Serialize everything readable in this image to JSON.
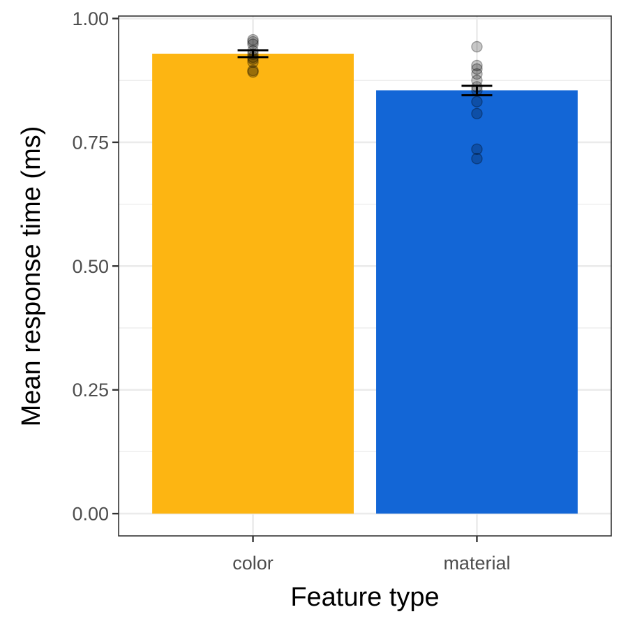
{
  "chart_data": {
    "type": "bar",
    "xlabel": "Feature type",
    "ylabel": "Mean response time (ms)",
    "categories": [
      "color",
      "material"
    ],
    "values": [
      0.929,
      0.855
    ],
    "error": [
      {
        "low": 0.922,
        "high": 0.936
      },
      {
        "low": 0.845,
        "high": 0.864
      }
    ],
    "points": [
      [
        0.957,
        0.953,
        0.948,
        0.935,
        0.928,
        0.922,
        0.918,
        0.912,
        0.895,
        0.892
      ],
      [
        0.943,
        0.905,
        0.898,
        0.888,
        0.875,
        0.862,
        0.855,
        0.832,
        0.808,
        0.736,
        0.717
      ]
    ],
    "colors": [
      "#FDB512",
      "#1366D6"
    ],
    "yticks": [
      "0.00",
      "0.25",
      "0.50",
      "0.75",
      "1.00"
    ],
    "ylim": [
      -0.045,
      1.005
    ],
    "grid": true
  }
}
